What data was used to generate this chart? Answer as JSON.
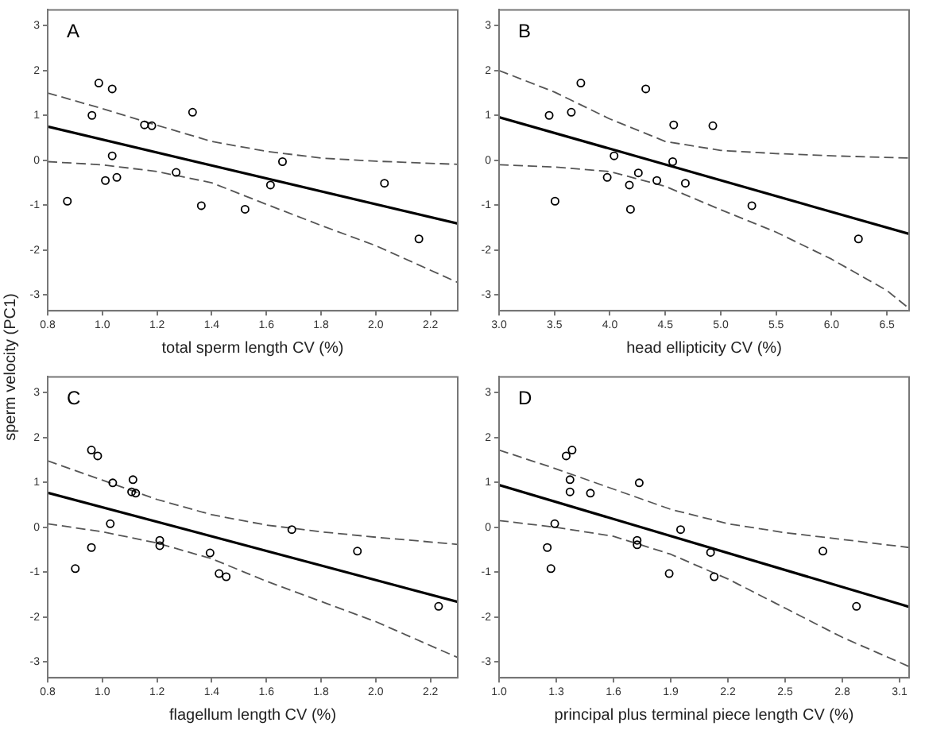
{
  "chart_data": [
    {
      "type": "scatter",
      "xlabel": "total sperm length CV (%)",
      "ylabel": "sperm velocity (PC1)",
      "annotations": [
        "A"
      ],
      "grid": false,
      "legend": false,
      "xlim": [
        0.8,
        2.3
      ],
      "xticks": [
        {
          "value": 0.8,
          "label": "0.8"
        },
        {
          "value": 1,
          "label": "1.0"
        },
        {
          "value": 1.2,
          "label": "1.2"
        },
        {
          "value": 1.4,
          "label": "1.4"
        },
        {
          "value": 1.6,
          "label": "1.6"
        },
        {
          "value": 1.8,
          "label": "1.8"
        },
        {
          "value": 2,
          "label": "2.0"
        },
        {
          "value": 2.2,
          "label": "2.2"
        }
      ],
      "ylim": [
        -3.35,
        3.35
      ],
      "yticks": [
        -3,
        -2,
        -1,
        0,
        1,
        2,
        3
      ],
      "series": [
        {
          "marker": "circle",
          "color": "#000000",
          "x": [
            0.872,
            0.962,
            0.987,
            1.036,
            1.036,
            1.011,
            1.053,
            1.154,
            1.181,
            1.27,
            1.33,
            1.362,
            1.522,
            1.615,
            1.659,
            2.032,
            2.158
          ],
          "values": [
            -0.91,
            1.0,
            1.72,
            1.59,
            0.1,
            -0.45,
            -0.38,
            0.79,
            0.77,
            -0.27,
            1.07,
            -1.01,
            -1.09,
            -0.55,
            -0.03,
            -0.51,
            -1.75
          ]
        },
        {
          "type": "line",
          "marker": "none",
          "color": "#000000",
          "line_style": "solid",
          "x": [
            0.8,
            2.3
          ],
          "values": [
            0.75,
            -1.41
          ]
        },
        {
          "type": "line",
          "marker": "none",
          "color": "#555555",
          "line_style": "dashed",
          "x": [
            0.8,
            1.0,
            1.2,
            1.4,
            1.6,
            1.8,
            2.0,
            2.3
          ],
          "values": [
            1.5,
            1.15,
            0.78,
            0.42,
            0.2,
            0.05,
            -0.02,
            -0.09
          ]
        },
        {
          "type": "line",
          "marker": "none",
          "color": "#555555",
          "line_style": "dashed",
          "x": [
            0.8,
            1.0,
            1.2,
            1.4,
            1.6,
            1.8,
            2.0,
            2.3
          ],
          "values": [
            -0.03,
            -0.1,
            -0.25,
            -0.5,
            -0.98,
            -1.45,
            -1.9,
            -2.72
          ]
        }
      ]
    },
    {
      "type": "scatter",
      "xlabel": "head ellipticity CV (%)",
      "annotations": [
        "B"
      ],
      "grid": false,
      "legend": false,
      "xlim": [
        3.0,
        6.7
      ],
      "xticks": [
        {
          "value": 3,
          "label": "3.0"
        },
        3.5,
        {
          "value": 4,
          "label": "4.0"
        },
        4.5,
        {
          "value": 5,
          "label": "5.0"
        },
        5.5,
        {
          "value": 6,
          "label": "6.0"
        },
        6.5
      ],
      "ylim": [
        -3.35,
        3.35
      ],
      "yticks": [
        -3,
        -2,
        -1,
        0,
        1,
        2,
        3
      ],
      "series": [
        {
          "marker": "circle",
          "color": "#000000",
          "x": [
            3.452,
            3.505,
            3.652,
            3.738,
            4.038,
            3.976,
            4.176,
            4.186,
            4.257,
            4.324,
            4.424,
            4.567,
            4.576,
            4.681,
            4.929,
            5.281,
            6.243
          ],
          "values": [
            1.0,
            -0.91,
            1.07,
            1.72,
            0.1,
            -0.38,
            -0.55,
            -1.09,
            -0.28,
            1.59,
            -0.45,
            -0.03,
            0.79,
            -0.51,
            0.77,
            -1.01,
            -1.75
          ]
        },
        {
          "type": "line",
          "marker": "none",
          "color": "#000000",
          "line_style": "solid",
          "x": [
            3.0,
            6.7
          ],
          "values": [
            0.96,
            -1.64
          ]
        },
        {
          "type": "line",
          "marker": "none",
          "color": "#555555",
          "line_style": "dashed",
          "x": [
            3.0,
            3.5,
            4.0,
            4.5,
            5.0,
            5.5,
            6.0,
            6.7
          ],
          "values": [
            2.0,
            1.52,
            0.92,
            0.42,
            0.22,
            0.15,
            0.1,
            0.05
          ]
        },
        {
          "type": "line",
          "marker": "none",
          "color": "#555555",
          "line_style": "dashed",
          "x": [
            3.0,
            3.5,
            4.0,
            4.5,
            5.0,
            5.5,
            6.0,
            6.5,
            6.7
          ],
          "values": [
            -0.1,
            -0.15,
            -0.25,
            -0.58,
            -1.1,
            -1.6,
            -2.2,
            -2.9,
            -3.3
          ]
        }
      ]
    },
    {
      "type": "scatter",
      "xlabel": "flagellum length CV (%)",
      "annotations": [
        "C"
      ],
      "grid": false,
      "legend": false,
      "xlim": [
        0.8,
        2.3
      ],
      "xticks": [
        {
          "value": 0.8,
          "label": "0.8"
        },
        {
          "value": 1,
          "label": "1.0"
        },
        {
          "value": 1.2,
          "label": "1.2"
        },
        {
          "value": 1.4,
          "label": "1.4"
        },
        {
          "value": 1.6,
          "label": "1.6"
        },
        {
          "value": 1.8,
          "label": "1.8"
        },
        {
          "value": 2,
          "label": "2.0"
        },
        {
          "value": 2.2,
          "label": "2.2"
        }
      ],
      "ylim": [
        -3.35,
        3.35
      ],
      "yticks": [
        -3,
        -2,
        -1,
        0,
        1,
        2,
        3
      ],
      "series": [
        {
          "marker": "circle",
          "color": "#000000",
          "x": [
            0.901,
            0.96,
            0.983,
            0.96,
            1.029,
            1.038,
            1.112,
            1.107,
            1.122,
            1.21,
            1.21,
            1.394,
            1.427,
            1.453,
            1.693,
            1.933,
            2.23
          ],
          "values": [
            -0.92,
            1.72,
            1.59,
            -0.45,
            0.08,
            0.99,
            1.06,
            0.79,
            0.76,
            -0.29,
            -0.41,
            -0.57,
            -1.03,
            -1.1,
            -0.05,
            -0.53,
            -1.76
          ]
        },
        {
          "type": "line",
          "marker": "none",
          "color": "#000000",
          "line_style": "solid",
          "x": [
            0.8,
            2.3
          ],
          "values": [
            0.77,
            -1.66
          ]
        },
        {
          "type": "line",
          "marker": "none",
          "color": "#555555",
          "line_style": "dashed",
          "x": [
            0.8,
            1.0,
            1.2,
            1.4,
            1.6,
            1.8,
            2.0,
            2.3
          ],
          "values": [
            1.48,
            1.05,
            0.62,
            0.28,
            0.05,
            -0.1,
            -0.22,
            -0.38
          ]
        },
        {
          "type": "line",
          "marker": "none",
          "color": "#555555",
          "line_style": "dashed",
          "x": [
            0.8,
            1.0,
            1.2,
            1.4,
            1.6,
            1.8,
            2.0,
            2.3
          ],
          "values": [
            0.08,
            -0.1,
            -0.35,
            -0.7,
            -1.2,
            -1.65,
            -2.1,
            -2.9
          ]
        }
      ]
    },
    {
      "type": "scatter",
      "xlabel": "principal plus terminal piece length CV (%)",
      "annotations": [
        "D"
      ],
      "grid": false,
      "legend": false,
      "xlim": [
        1.0,
        3.15
      ],
      "xticks": [
        {
          "value": 1,
          "label": "1.0"
        },
        1.3,
        1.6,
        1.9,
        2.2,
        2.5,
        2.8,
        3.1
      ],
      "ylim": [
        -3.35,
        3.35
      ],
      "yticks": [
        -3,
        -2,
        -1,
        0,
        1,
        2,
        3
      ],
      "series": [
        {
          "marker": "circle",
          "color": "#000000",
          "x": [
            1.253,
            1.272,
            1.292,
            1.352,
            1.383,
            1.372,
            1.372,
            1.479,
            1.724,
            1.724,
            1.735,
            1.892,
            1.952,
            2.109,
            2.128,
            2.698,
            2.874
          ],
          "values": [
            -0.45,
            -0.92,
            0.08,
            1.59,
            1.72,
            1.06,
            0.79,
            0.76,
            -0.29,
            -0.39,
            0.99,
            -1.03,
            -0.05,
            -0.56,
            -1.1,
            -0.53,
            -1.76
          ]
        },
        {
          "type": "line",
          "marker": "none",
          "color": "#000000",
          "line_style": "solid",
          "x": [
            1.0,
            3.15
          ],
          "values": [
            0.94,
            -1.77
          ]
        },
        {
          "type": "line",
          "marker": "none",
          "color": "#555555",
          "line_style": "dashed",
          "x": [
            1.0,
            1.3,
            1.6,
            1.9,
            2.2,
            2.5,
            2.8,
            3.15
          ],
          "values": [
            1.72,
            1.3,
            0.85,
            0.4,
            0.08,
            -0.12,
            -0.27,
            -0.45
          ]
        },
        {
          "type": "line",
          "marker": "none",
          "color": "#555555",
          "line_style": "dashed",
          "x": [
            1.0,
            1.3,
            1.6,
            1.9,
            2.2,
            2.5,
            2.8,
            3.15
          ],
          "values": [
            0.15,
            0.0,
            -0.2,
            -0.6,
            -1.15,
            -1.8,
            -2.45,
            -3.1
          ]
        }
      ]
    }
  ]
}
